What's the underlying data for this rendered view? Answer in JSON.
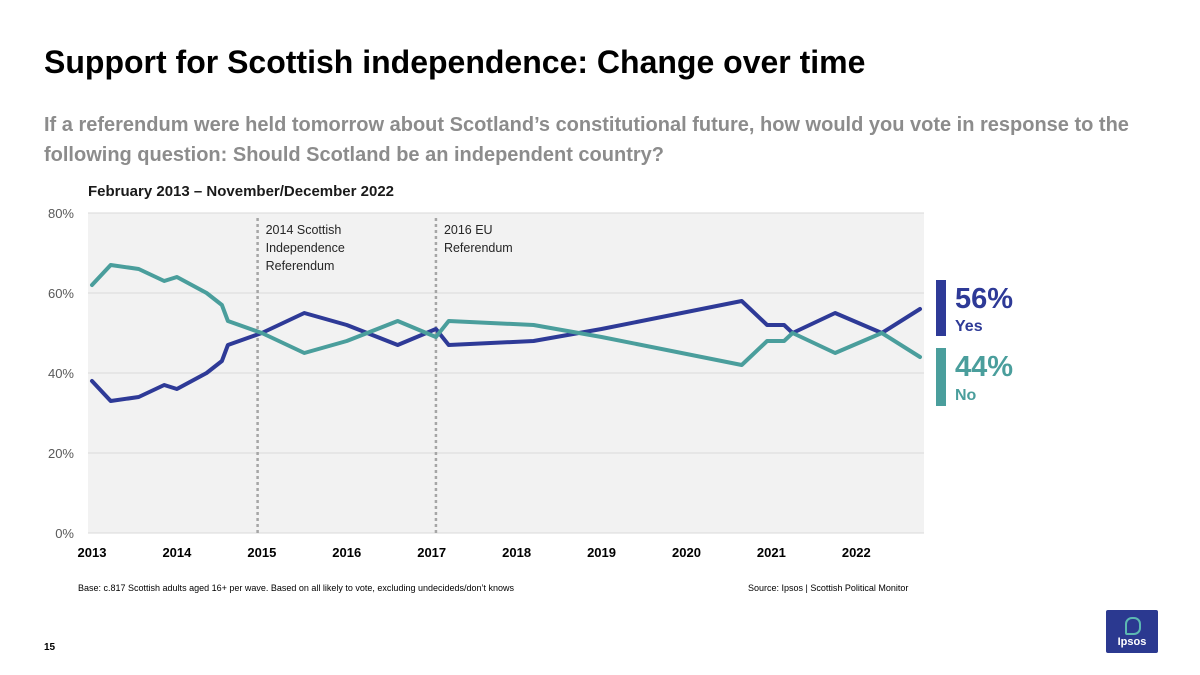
{
  "title": "Support for Scottish independence: Change over time",
  "subtitle": "If a referendum were held tomorrow about Scotland’s constitutional future, how would you vote in response to the following question: Should Scotland be an independent country?",
  "period": "February 2013 – November/December 2022",
  "legend": {
    "yes": {
      "value": "56%",
      "label": "Yes",
      "color": "#2e3a97"
    },
    "no": {
      "value": "44%",
      "label": "No",
      "color": "#4a9e9c"
    }
  },
  "footer": {
    "base": "Base: c.817 Scottish adults aged 16+ per wave. Based on all likely to vote, excluding undecideds/don’t knows",
    "source": "Source: Ipsos | Scottish Political Monitor"
  },
  "page_number": "15",
  "logo_text": "Ipsos",
  "chart_data": {
    "type": "line",
    "title": "February 2013 – November/December 2022",
    "xlabel": "",
    "ylabel": "",
    "xlim": [
      2013,
      2022.75
    ],
    "ylim": [
      0,
      80
    ],
    "yticks": [
      0,
      20,
      40,
      60,
      80
    ],
    "ytick_labels": [
      "0%",
      "20%",
      "40%",
      "60%",
      "80%"
    ],
    "xticks": [
      2013,
      2014,
      2015,
      2016,
      2017,
      2018,
      2019,
      2020,
      2021,
      2022
    ],
    "xtick_labels": [
      "2013",
      "2014",
      "2015",
      "2016",
      "2017",
      "2018",
      "2019",
      "2020",
      "2021",
      "2022"
    ],
    "grid": true,
    "annotations": [
      {
        "x": 2014.95,
        "lines": [
          "2014 Scottish",
          "Independence",
          "Referendum"
        ]
      },
      {
        "x": 2017.05,
        "lines": [
          "2016 EU",
          "Referendum"
        ]
      }
    ],
    "series": [
      {
        "name": "Yes",
        "color": "#2e3a97",
        "points": [
          [
            2013.0,
            38
          ],
          [
            2013.22,
            33
          ],
          [
            2013.55,
            34
          ],
          [
            2013.85,
            37
          ],
          [
            2014.0,
            36
          ],
          [
            2014.35,
            40
          ],
          [
            2014.53,
            43
          ],
          [
            2014.6,
            47
          ],
          [
            2015.0,
            50
          ],
          [
            2015.5,
            55
          ],
          [
            2016.0,
            52
          ],
          [
            2016.6,
            47
          ],
          [
            2017.05,
            51
          ],
          [
            2017.2,
            47
          ],
          [
            2018.2,
            48
          ],
          [
            2019.0,
            51
          ],
          [
            2020.65,
            58
          ],
          [
            2020.75,
            56
          ],
          [
            2020.95,
            52
          ],
          [
            2021.15,
            52
          ],
          [
            2021.25,
            50
          ],
          [
            2021.75,
            55
          ],
          [
            2022.3,
            50
          ],
          [
            2022.75,
            56
          ]
        ]
      },
      {
        "name": "No",
        "color": "#4a9e9c",
        "points": [
          [
            2013.0,
            62
          ],
          [
            2013.22,
            67
          ],
          [
            2013.55,
            66
          ],
          [
            2013.85,
            63
          ],
          [
            2014.0,
            64
          ],
          [
            2014.35,
            60
          ],
          [
            2014.53,
            57
          ],
          [
            2014.6,
            53
          ],
          [
            2015.0,
            50
          ],
          [
            2015.5,
            45
          ],
          [
            2016.0,
            48
          ],
          [
            2016.6,
            53
          ],
          [
            2017.05,
            49
          ],
          [
            2017.2,
            53
          ],
          [
            2018.2,
            52
          ],
          [
            2019.0,
            49
          ],
          [
            2020.65,
            42
          ],
          [
            2020.75,
            44
          ],
          [
            2020.95,
            48
          ],
          [
            2021.15,
            48
          ],
          [
            2021.25,
            50
          ],
          [
            2021.75,
            45
          ],
          [
            2022.3,
            50
          ],
          [
            2022.75,
            44
          ]
        ]
      }
    ]
  }
}
